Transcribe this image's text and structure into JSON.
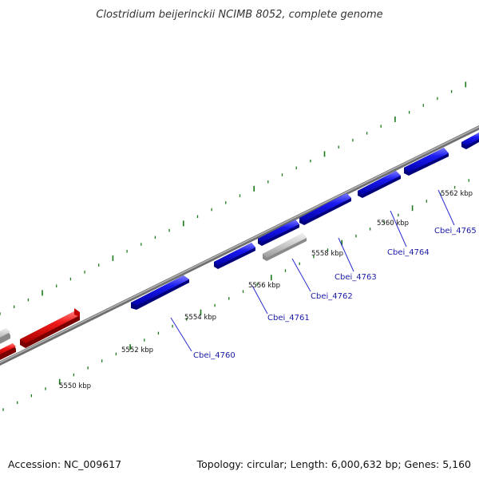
{
  "title": "Clostridium beijerinckii NCIMB 8052, complete genome",
  "footer": {
    "accession": "Accession: NC_009617",
    "summary": "Topology: circular; Length: 6,000,632 bp; Genes: 5,160"
  },
  "colors": {
    "forward_gene": "#1414e0",
    "reverse_gene": "#e01414",
    "other_gene": "#c8c8c8",
    "backbone": "#8c8c8c",
    "ticks": "#1a7a1a",
    "label_text": "#1a1aa6",
    "leader_line": "#2a2ad0"
  },
  "scale_labels": [
    "5550 kbp",
    "5552 kbp",
    "5554 kbp",
    "5556 kbp",
    "5558 kbp",
    "5560 kbp",
    "5562 kbp"
  ],
  "gene_labels": [
    "Cbei_4760",
    "Cbei_4761",
    "Cbei_4762",
    "Cbei_4763",
    "Cbei_4764",
    "Cbei_4765"
  ]
}
